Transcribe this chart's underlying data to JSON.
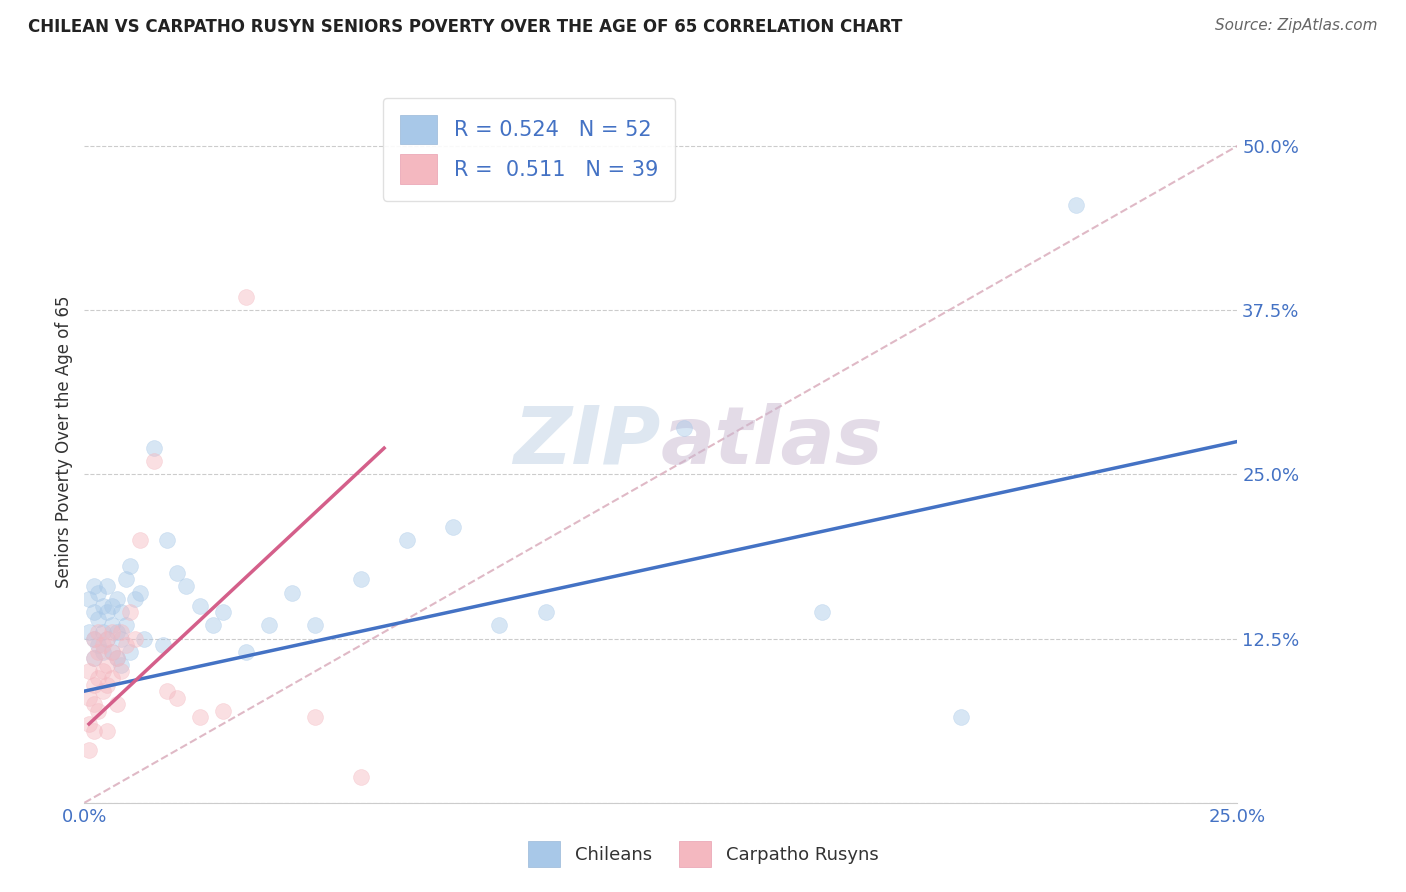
{
  "title": "CHILEAN VS CARPATHO RUSYN SENIORS POVERTY OVER THE AGE OF 65 CORRELATION CHART",
  "source": "Source: ZipAtlas.com",
  "ylabel": "Seniors Poverty Over the Age of 65",
  "background_color": "#ffffff",
  "chilean_color": "#a8c8e8",
  "carpatho_color": "#f4b8c0",
  "chilean_line_color": "#4472c4",
  "carpatho_line_color": "#d45f8a",
  "diagonal_color": "#d8a8b8",
  "R_chilean": 0.524,
  "N_chilean": 52,
  "R_carpatho": 0.511,
  "N_carpatho": 39,
  "xlim": [
    0.0,
    0.25
  ],
  "ylim": [
    0.0,
    0.55
  ],
  "xticks": [
    0.0,
    0.05,
    0.1,
    0.15,
    0.2,
    0.25
  ],
  "xticklabels": [
    "0.0%",
    "",
    "",
    "",
    "",
    "25.0%"
  ],
  "yticks": [
    0.0,
    0.125,
    0.25,
    0.375,
    0.5
  ],
  "yticklabels": [
    "",
    "12.5%",
    "25.0%",
    "37.5%",
    "50.0%"
  ],
  "chilean_x": [
    0.001,
    0.001,
    0.002,
    0.002,
    0.002,
    0.002,
    0.003,
    0.003,
    0.003,
    0.004,
    0.004,
    0.004,
    0.005,
    0.005,
    0.005,
    0.006,
    0.006,
    0.006,
    0.007,
    0.007,
    0.007,
    0.008,
    0.008,
    0.008,
    0.009,
    0.009,
    0.01,
    0.01,
    0.011,
    0.012,
    0.013,
    0.015,
    0.017,
    0.018,
    0.02,
    0.022,
    0.025,
    0.028,
    0.03,
    0.035,
    0.04,
    0.045,
    0.05,
    0.06,
    0.07,
    0.08,
    0.09,
    0.1,
    0.13,
    0.16,
    0.19,
    0.215
  ],
  "chilean_y": [
    0.13,
    0.155,
    0.145,
    0.125,
    0.165,
    0.11,
    0.14,
    0.12,
    0.16,
    0.13,
    0.15,
    0.115,
    0.145,
    0.125,
    0.165,
    0.135,
    0.115,
    0.15,
    0.13,
    0.11,
    0.155,
    0.125,
    0.145,
    0.105,
    0.17,
    0.135,
    0.18,
    0.115,
    0.155,
    0.16,
    0.125,
    0.27,
    0.12,
    0.2,
    0.175,
    0.165,
    0.15,
    0.135,
    0.145,
    0.115,
    0.135,
    0.16,
    0.135,
    0.17,
    0.2,
    0.21,
    0.135,
    0.145,
    0.285,
    0.145,
    0.065,
    0.455
  ],
  "carpatho_x": [
    0.001,
    0.001,
    0.001,
    0.001,
    0.002,
    0.002,
    0.002,
    0.002,
    0.002,
    0.003,
    0.003,
    0.003,
    0.003,
    0.004,
    0.004,
    0.004,
    0.005,
    0.005,
    0.005,
    0.005,
    0.006,
    0.006,
    0.006,
    0.007,
    0.007,
    0.008,
    0.008,
    0.009,
    0.01,
    0.011,
    0.012,
    0.015,
    0.018,
    0.02,
    0.025,
    0.03,
    0.035,
    0.05,
    0.06
  ],
  "carpatho_y": [
    0.08,
    0.06,
    0.1,
    0.04,
    0.09,
    0.11,
    0.075,
    0.125,
    0.055,
    0.095,
    0.115,
    0.07,
    0.13,
    0.1,
    0.12,
    0.085,
    0.105,
    0.125,
    0.09,
    0.055,
    0.115,
    0.095,
    0.13,
    0.11,
    0.075,
    0.1,
    0.13,
    0.12,
    0.145,
    0.125,
    0.2,
    0.26,
    0.085,
    0.08,
    0.065,
    0.07,
    0.385,
    0.065,
    0.02
  ],
  "marker_size": 130,
  "marker_alpha": 0.45,
  "line_width": 2.5,
  "chilean_line_x0": 0.0,
  "chilean_line_y0": 0.085,
  "chilean_line_x1": 0.25,
  "chilean_line_y1": 0.275,
  "carpatho_line_x0": 0.001,
  "carpatho_line_y0": 0.06,
  "carpatho_line_x1": 0.065,
  "carpatho_line_y1": 0.27
}
